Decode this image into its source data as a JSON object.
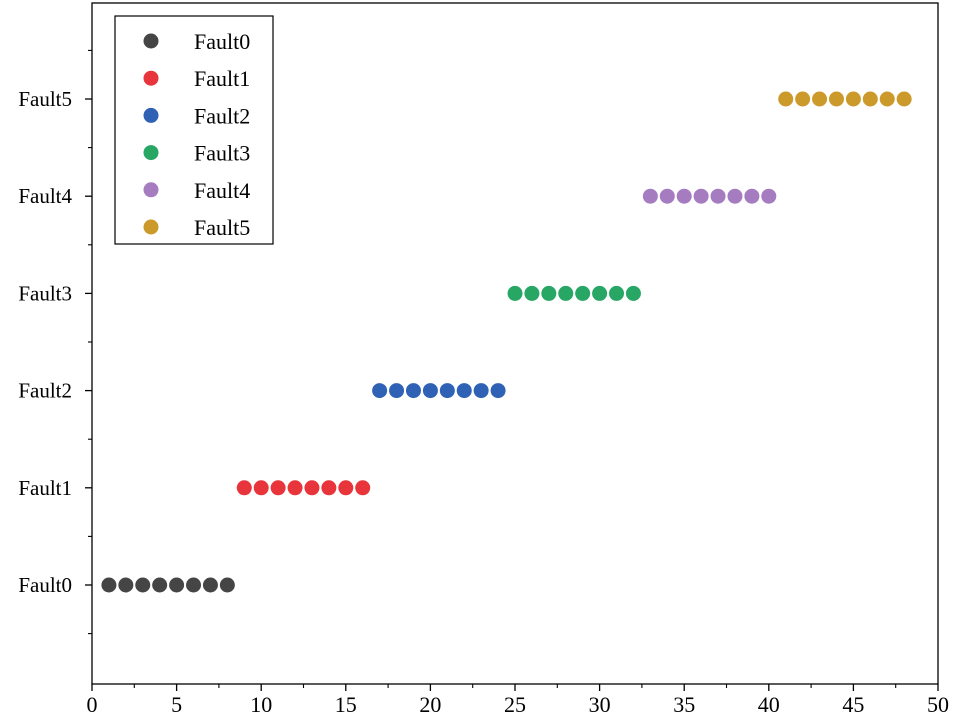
{
  "chart_data": {
    "type": "scatter",
    "title": "",
    "xlabel": "",
    "ylabel": "",
    "xlim": [
      0,
      50
    ],
    "x_ticks": [
      0,
      5,
      10,
      15,
      20,
      25,
      30,
      35,
      40,
      45,
      50
    ],
    "y_categories": [
      "Fault0",
      "Fault1",
      "Fault2",
      "Fault3",
      "Fault4",
      "Fault5"
    ],
    "grid": false,
    "legend_position": "top-left",
    "series": [
      {
        "name": "Fault0",
        "color": "#454545",
        "category": "Fault0",
        "x": [
          1,
          2,
          3,
          4,
          5,
          6,
          7,
          8
        ]
      },
      {
        "name": "Fault1",
        "color": "#e8343b",
        "category": "Fault1",
        "x": [
          9,
          10,
          11,
          12,
          13,
          14,
          15,
          16
        ]
      },
      {
        "name": "Fault2",
        "color": "#2f62b5",
        "category": "Fault2",
        "x": [
          17,
          18,
          19,
          20,
          21,
          22,
          23,
          24
        ]
      },
      {
        "name": "Fault3",
        "color": "#27a664",
        "category": "Fault3",
        "x": [
          25,
          26,
          27,
          28,
          29,
          30,
          31,
          32
        ]
      },
      {
        "name": "Fault4",
        "color": "#a57cc0",
        "category": "Fault4",
        "x": [
          33,
          34,
          35,
          36,
          37,
          38,
          39,
          40
        ]
      },
      {
        "name": "Fault5",
        "color": "#cc992b",
        "category": "Fault5",
        "x": [
          41,
          42,
          43,
          44,
          45,
          46,
          47,
          48
        ]
      }
    ]
  }
}
